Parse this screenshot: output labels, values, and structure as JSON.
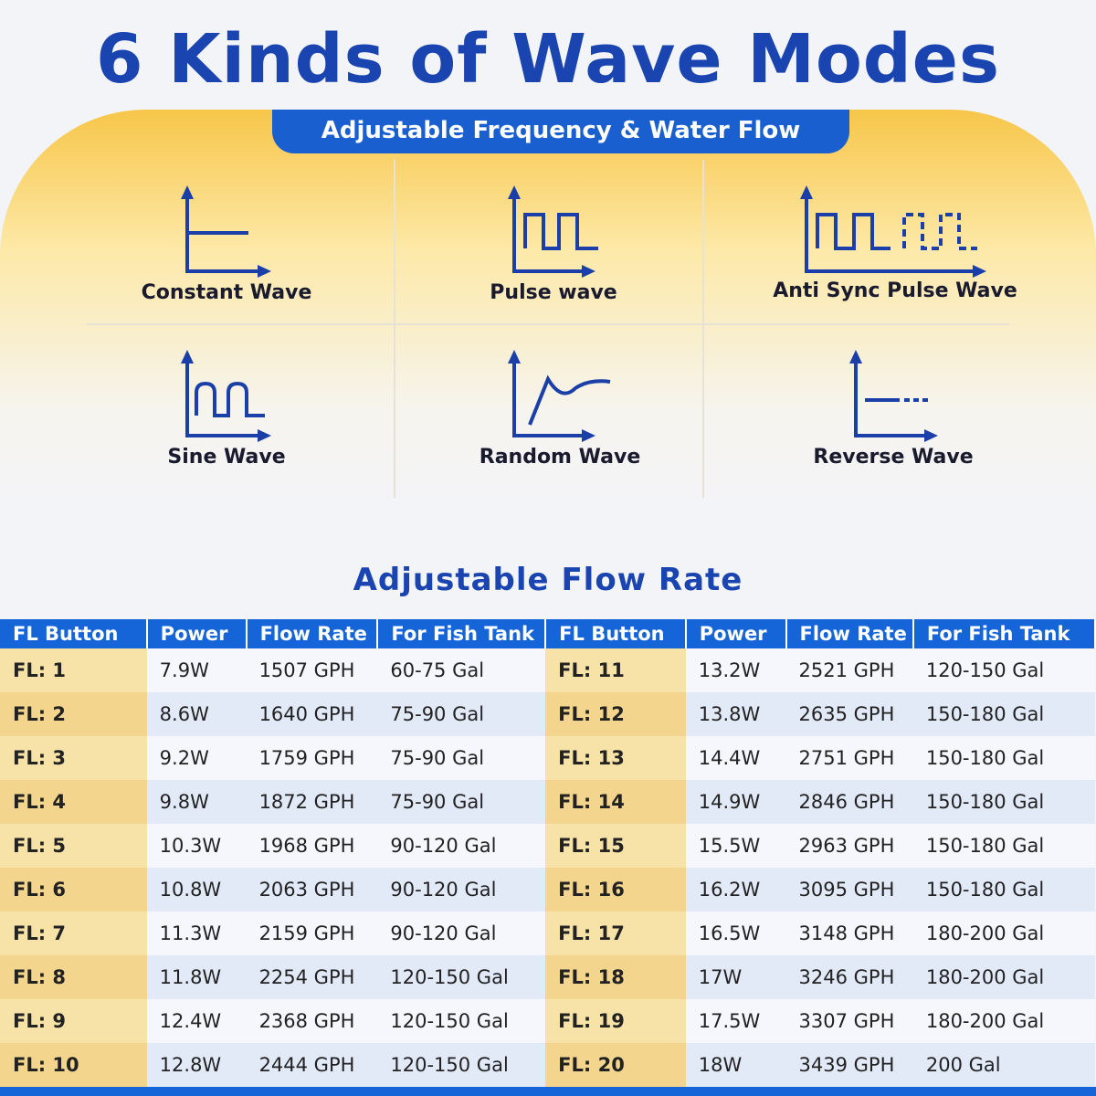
{
  "header": {
    "title": "6 Kinds of Wave Modes",
    "subtitle": "Adjustable Frequency & Water Flow"
  },
  "waves": [
    "Constant Wave",
    "Pulse wave",
    "Anti Sync Pulse Wave",
    "Sine Wave",
    "Random Wave",
    "Reverse Wave"
  ],
  "section_title": "Adjustable Flow Rate",
  "table": {
    "headers": [
      "FL Button",
      "Power",
      "Flow Rate",
      "For Fish Tank",
      "FL Button",
      "Power",
      "Flow Rate",
      "For Fish Tank"
    ],
    "rows": [
      [
        "FL: 1",
        "7.9W",
        "1507 GPH",
        "60-75 Gal",
        "FL: 11",
        "13.2W",
        "2521 GPH",
        "120-150 Gal"
      ],
      [
        "FL: 2",
        "8.6W",
        "1640 GPH",
        "75-90 Gal",
        "FL: 12",
        "13.8W",
        "2635 GPH",
        "150-180 Gal"
      ],
      [
        "FL: 3",
        "9.2W",
        "1759 GPH",
        "75-90 Gal",
        "FL: 13",
        "14.4W",
        "2751 GPH",
        "150-180 Gal"
      ],
      [
        "FL: 4",
        "9.8W",
        "1872 GPH",
        "75-90 Gal",
        "FL: 14",
        "14.9W",
        "2846 GPH",
        "150-180 Gal"
      ],
      [
        "FL: 5",
        "10.3W",
        "1968 GPH",
        "90-120 Gal",
        "FL: 15",
        "15.5W",
        "2963 GPH",
        "150-180 Gal"
      ],
      [
        "FL: 6",
        "10.8W",
        "2063 GPH",
        "90-120 Gal",
        "FL: 16",
        "16.2W",
        "3095 GPH",
        "150-180 Gal"
      ],
      [
        "FL: 7",
        "11.3W",
        "2159 GPH",
        "90-120 Gal",
        "FL: 17",
        "16.5W",
        "3148 GPH",
        "180-200 Gal"
      ],
      [
        "FL: 8",
        "11.8W",
        "2254 GPH",
        "120-150 Gal",
        "FL: 18",
        "17W",
        "3246 GPH",
        "180-200 Gal"
      ],
      [
        "FL: 9",
        "12.4W",
        "2368 GPH",
        "120-150 Gal",
        "FL: 19",
        "17.5W",
        "3307 GPH",
        "180-200 Gal"
      ],
      [
        "FL: 10",
        "12.8W",
        "2444 GPH",
        "120-150 Gal",
        "FL: 20",
        "18W",
        "3439 GPH",
        "200 Gal"
      ]
    ]
  }
}
